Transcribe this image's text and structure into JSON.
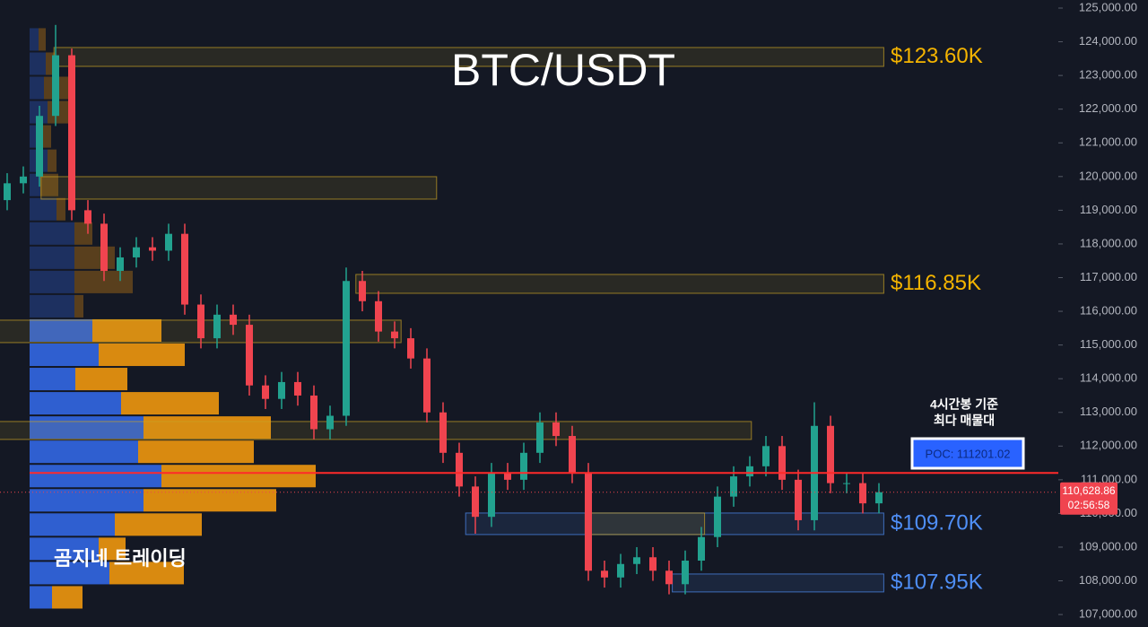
{
  "chart_data": {
    "type": "candlestick",
    "title": "BTC/USDT",
    "watermark": "곰지네 트레이딩",
    "ylim": [
      106630,
      125240
    ],
    "yticks": [
      {
        "value": 107000,
        "label": "107,000.00"
      },
      {
        "value": 108000,
        "label": "108,000.00"
      },
      {
        "value": 109000,
        "label": "109,000.00"
      },
      {
        "value": 110000,
        "label": "110,000.00"
      },
      {
        "value": 111000,
        "label": "111,000.00"
      },
      {
        "value": 112000,
        "label": "112,000.00"
      },
      {
        "value": 113000,
        "label": "113,000.00"
      },
      {
        "value": 114000,
        "label": "114,000.00"
      },
      {
        "value": 115000,
        "label": "115,000.00"
      },
      {
        "value": 116000,
        "label": "116,000.00"
      },
      {
        "value": 117000,
        "label": "117,000.00"
      },
      {
        "value": 118000,
        "label": "118,000.00"
      },
      {
        "value": 119000,
        "label": "119,000.00"
      },
      {
        "value": 120000,
        "label": "120,000.00"
      },
      {
        "value": 121000,
        "label": "121,000.00"
      },
      {
        "value": 122000,
        "label": "122,000.00"
      },
      {
        "value": 123000,
        "label": "123,000.00"
      },
      {
        "value": 124000,
        "label": "124,000.00"
      },
      {
        "value": 125000,
        "label": "125,000.00"
      }
    ],
    "up_color": "#22a28f",
    "down_color": "#f0444f",
    "open": [
      119300,
      119800,
      120000,
      121800,
      123600,
      119000,
      118600,
      117200,
      117600,
      117900,
      117800,
      118300,
      116200,
      115200,
      115900,
      115600,
      113800,
      113400,
      113900,
      113500,
      112500,
      112900,
      116900,
      116300,
      115400,
      115200,
      114600,
      113000,
      111800,
      110800,
      109900,
      111200,
      111000,
      111800,
      112700,
      112300,
      111200,
      108300,
      108100,
      108500,
      108700,
      108300,
      107900,
      108600,
      109300,
      110500,
      111100,
      111400,
      112000,
      111000,
      109800,
      112600,
      110900,
      110900,
      110300
    ],
    "high": [
      120100,
      120300,
      122100,
      124500,
      123800,
      119300,
      118900,
      117900,
      118200,
      118200,
      118600,
      118600,
      116500,
      116200,
      116200,
      115900,
      114100,
      114200,
      114200,
      113800,
      113200,
      117300,
      117200,
      116600,
      115700,
      115500,
      114900,
      113300,
      112100,
      111100,
      111500,
      111500,
      112100,
      113000,
      113000,
      112600,
      111500,
      108600,
      108800,
      109000,
      109000,
      108600,
      108900,
      109600,
      110800,
      111400,
      111700,
      112300,
      112300,
      111300,
      113300,
      112900,
      111200,
      111200,
      110900
    ],
    "low": [
      119000,
      119500,
      119700,
      121500,
      118700,
      118300,
      116900,
      116900,
      117300,
      117500,
      117500,
      115900,
      114900,
      114900,
      115300,
      113500,
      113100,
      113100,
      113200,
      112200,
      112200,
      112600,
      116000,
      115100,
      114900,
      114300,
      112700,
      111500,
      110500,
      109400,
      109600,
      110700,
      110700,
      111500,
      112000,
      110900,
      108000,
      107800,
      107800,
      108200,
      108000,
      107600,
      107600,
      108300,
      109000,
      110200,
      110800,
      111100,
      110700,
      109500,
      109500,
      110600,
      110600,
      110000,
      110000
    ],
    "close": [
      119800,
      120000,
      121800,
      123600,
      119000,
      118600,
      117200,
      117600,
      117900,
      117800,
      118300,
      116200,
      115200,
      115900,
      115600,
      113800,
      113400,
      113900,
      113500,
      112500,
      112900,
      116900,
      116300,
      115400,
      115200,
      114600,
      113000,
      111800,
      110800,
      109900,
      111200,
      111000,
      111800,
      112700,
      112300,
      111200,
      108300,
      108100,
      108500,
      108700,
      108300,
      107900,
      108600,
      109300,
      110500,
      111100,
      111400,
      112000,
      111000,
      109800,
      112600,
      110900,
      110900,
      110300,
      110630
    ],
    "volume_profile": {
      "bins": [
        124430,
        123710,
        122990,
        122270,
        121550,
        120830,
        120110,
        119390,
        118670,
        117950,
        117230,
        116510,
        115790,
        115070,
        114350,
        113630,
        112910,
        112190,
        111470,
        110750,
        110030,
        109310,
        108590,
        107870,
        107150
      ],
      "buy_color": "#2f5fd0",
      "sell_color": "#d98a10",
      "buy": [
        10,
        18,
        16,
        20,
        12,
        20,
        12,
        30,
        50,
        50,
        50,
        50,
        70,
        77,
        51,
        102,
        127,
        121,
        147,
        127,
        95,
        77,
        89,
        25
      ],
      "sell": [
        8,
        10,
        35,
        30,
        12,
        10,
        20,
        10,
        20,
        45,
        65,
        10,
        77,
        96,
        58,
        109,
        142,
        129,
        172,
        148,
        97,
        30,
        83,
        34
      ]
    },
    "zones": [
      {
        "low": 123270,
        "high": 123830,
        "from": 2.9,
        "to": 54.3,
        "color": "#c9a227",
        "label": "$123.60K"
      },
      {
        "low": 119330,
        "high": 119996,
        "from": 2.1,
        "to": 26.6,
        "color": "#c9a227"
      },
      {
        "low": 116535,
        "high": 117094,
        "from": 21.6,
        "to": 54.3,
        "color": "#c9a227",
        "label": "$116.85K"
      },
      {
        "low": 115071,
        "high": 115737,
        "from": -0.5,
        "to": 24.4,
        "color": "#c9a227"
      },
      {
        "low": 112197,
        "high": 112729,
        "from": -0.5,
        "to": 46.1,
        "color": "#c9a227"
      },
      {
        "low": 109374,
        "high": 110013,
        "from": 28.4,
        "to": 54.3,
        "color": "#4f8ff7",
        "label": "$109.70K"
      },
      {
        "low": 109374,
        "high": 110013,
        "from": 35.8,
        "to": 43.2,
        "color": "#c9a227"
      },
      {
        "low": 107671,
        "high": 108203,
        "from": 41.2,
        "to": 54.3,
        "color": "#4f8ff7",
        "label": "$107.95K"
      }
    ],
    "poc": {
      "value": 111201.02,
      "label": "POC: 111201.02"
    },
    "poc_note": [
      "4시간봉 기준",
      "최다 매물대"
    ],
    "last_price": {
      "value": 110628.86,
      "label": "110,628.86"
    },
    "countdown": "02:56:58"
  }
}
